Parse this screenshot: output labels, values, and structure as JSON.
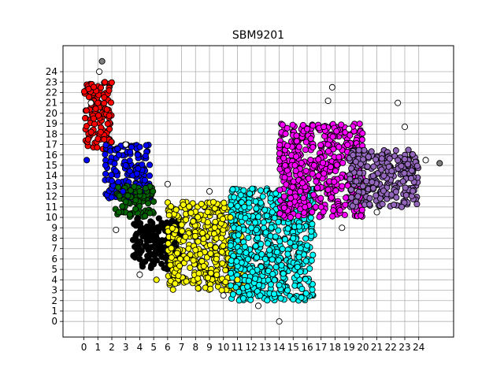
{
  "chart_data": {
    "type": "scatter",
    "title": "SBM9201",
    "xlabel": "",
    "ylabel": "",
    "xlim": [
      -1.5,
      26.5
    ],
    "ylim": [
      -1.5,
      26.5
    ],
    "x_ticks": [
      "0",
      "1",
      "2",
      "3",
      "4",
      "5",
      "6",
      "7",
      "8",
      "9",
      "10",
      "11",
      "12",
      "13",
      "14",
      "15",
      "16",
      "17",
      "18",
      "19",
      "20",
      "21",
      "22",
      "23",
      "24"
    ],
    "y_ticks": [
      "0",
      "1",
      "2",
      "3",
      "4",
      "5",
      "6",
      "7",
      "8",
      "9",
      "10",
      "11",
      "12",
      "13",
      "14",
      "15",
      "16",
      "17",
      "18",
      "19",
      "20",
      "21",
      "22",
      "23",
      "24"
    ],
    "grid": true,
    "legend": "none",
    "marker_edge_color": "#000000",
    "clusters": [
      {
        "color": "#ff0000",
        "region": {
          "x": [
            0.0,
            2.0
          ],
          "y": [
            16.5,
            23.0
          ]
        }
      },
      {
        "color": "#0000ff",
        "region": {
          "x": [
            1.5,
            4.8
          ],
          "y": [
            11.8,
            17.0
          ]
        }
      },
      {
        "color": "#006400",
        "region": {
          "x": [
            2.2,
            5.0
          ],
          "y": [
            10.0,
            13.0
          ]
        }
      },
      {
        "color": "#000000",
        "region": {
          "x": [
            3.5,
            7.0
          ],
          "y": [
            5.0,
            10.0
          ]
        }
      },
      {
        "color": "#ffff00",
        "region": {
          "x": [
            6.0,
            11.5
          ],
          "y": [
            3.0,
            11.5
          ]
        }
      },
      {
        "color": "#00ffff",
        "region": {
          "x": [
            10.5,
            16.5
          ],
          "y": [
            2.0,
            12.8
          ]
        }
      },
      {
        "color": "#ff00ff",
        "region": {
          "x": [
            14.0,
            20.0
          ],
          "y": [
            10.0,
            19.0
          ]
        }
      },
      {
        "color": "#9467bd",
        "region": {
          "x": [
            19.0,
            24.0
          ],
          "y": [
            11.0,
            16.5
          ]
        }
      }
    ],
    "points": [
      {
        "x": 1.5,
        "y": 23.0,
        "color": "#ff0000"
      },
      {
        "x": 1.8,
        "y": 22.2,
        "color": "#ff0000"
      },
      {
        "x": 1.0,
        "y": 21.0,
        "color": "#ff0000"
      },
      {
        "x": 0.7,
        "y": 19.5,
        "color": "#ff0000"
      },
      {
        "x": 1.2,
        "y": 18.2,
        "color": "#ff0000"
      },
      {
        "x": 0.3,
        "y": 17.5,
        "color": "#ff0000"
      },
      {
        "x": 1.7,
        "y": 19.0,
        "color": "#ff0000"
      },
      {
        "x": 2.5,
        "y": 16.0,
        "color": "#0000ff"
      },
      {
        "x": 3.0,
        "y": 15.0,
        "color": "#0000ff"
      },
      {
        "x": 2.0,
        "y": 13.5,
        "color": "#0000ff"
      },
      {
        "x": 3.8,
        "y": 14.2,
        "color": "#0000ff"
      },
      {
        "x": 0.2,
        "y": 15.5,
        "color": "#0000ff"
      },
      {
        "x": 2.8,
        "y": 12.5,
        "color": "#0000ff"
      },
      {
        "x": 3.0,
        "y": 11.5,
        "color": "#006400"
      },
      {
        "x": 4.0,
        "y": 12.5,
        "color": "#006400"
      },
      {
        "x": 2.5,
        "y": 10.5,
        "color": "#006400"
      },
      {
        "x": 3.7,
        "y": 10.8,
        "color": "#006400"
      },
      {
        "x": 4.5,
        "y": 8.0,
        "color": "#000000"
      },
      {
        "x": 5.5,
        "y": 9.0,
        "color": "#000000"
      },
      {
        "x": 4.0,
        "y": 6.0,
        "color": "#000000"
      },
      {
        "x": 5.0,
        "y": 5.5,
        "color": "#000000"
      },
      {
        "x": 6.5,
        "y": 7.5,
        "color": "#000000"
      },
      {
        "x": 7.5,
        "y": 7.0,
        "color": "#ffff00"
      },
      {
        "x": 8.5,
        "y": 8.5,
        "color": "#ffff00"
      },
      {
        "x": 9.5,
        "y": 6.0,
        "color": "#ffff00"
      },
      {
        "x": 10.5,
        "y": 10.0,
        "color": "#ffff00"
      },
      {
        "x": 11.0,
        "y": 4.0,
        "color": "#ffff00"
      },
      {
        "x": 5.2,
        "y": 4.0,
        "color": "#ffff00"
      },
      {
        "x": 12.0,
        "y": 9.0,
        "color": "#00ffff"
      },
      {
        "x": 13.0,
        "y": 6.0,
        "color": "#00ffff"
      },
      {
        "x": 14.0,
        "y": 3.5,
        "color": "#00ffff"
      },
      {
        "x": 15.0,
        "y": 8.0,
        "color": "#00ffff"
      },
      {
        "x": 11.5,
        "y": 11.0,
        "color": "#00ffff"
      },
      {
        "x": 13.5,
        "y": 10.5,
        "color": "#00ffff"
      },
      {
        "x": 15.5,
        "y": 12.5,
        "color": "#ff00ff"
      },
      {
        "x": 16.5,
        "y": 15.0,
        "color": "#ff00ff"
      },
      {
        "x": 17.5,
        "y": 17.0,
        "color": "#ff00ff"
      },
      {
        "x": 18.5,
        "y": 13.0,
        "color": "#ff00ff"
      },
      {
        "x": 16.0,
        "y": 18.5,
        "color": "#ff00ff"
      },
      {
        "x": 17.0,
        "y": 11.0,
        "color": "#ff00ff"
      },
      {
        "x": 20.0,
        "y": 13.0,
        "color": "#9467bd"
      },
      {
        "x": 21.5,
        "y": 14.0,
        "color": "#9467bd"
      },
      {
        "x": 22.5,
        "y": 15.5,
        "color": "#9467bd"
      },
      {
        "x": 23.5,
        "y": 14.5,
        "color": "#9467bd"
      },
      {
        "x": 19.5,
        "y": 11.5,
        "color": "#9467bd"
      },
      {
        "x": 1.3,
        "y": 25.0,
        "color": "#808080"
      },
      {
        "x": 25.5,
        "y": 15.2,
        "color": "#808080"
      },
      {
        "x": 1.1,
        "y": 24.0,
        "color": "#ffffff"
      },
      {
        "x": 17.8,
        "y": 22.5,
        "color": "#ffffff"
      },
      {
        "x": 22.5,
        "y": 21.0,
        "color": "#ffffff"
      },
      {
        "x": 14.0,
        "y": 0.0,
        "color": "#ffffff"
      },
      {
        "x": 6.0,
        "y": 13.2,
        "color": "#ffffff"
      },
      {
        "x": 0.5,
        "y": 21.0,
        "color": "#ffffff"
      },
      {
        "x": 23.0,
        "y": 18.7,
        "color": "#ffffff"
      },
      {
        "x": 17.5,
        "y": 21.2,
        "color": "#ffffff"
      },
      {
        "x": 19.0,
        "y": 18.5,
        "color": "#ffffff"
      },
      {
        "x": 10.0,
        "y": 2.5,
        "color": "#ffffff"
      },
      {
        "x": 12.5,
        "y": 1.5,
        "color": "#ffffff"
      },
      {
        "x": 4.0,
        "y": 4.5,
        "color": "#ffffff"
      },
      {
        "x": 9.0,
        "y": 12.5,
        "color": "#ffffff"
      },
      {
        "x": 2.3,
        "y": 8.8,
        "color": "#ffffff"
      },
      {
        "x": 3.0,
        "y": 17.0,
        "color": "#ffffff"
      },
      {
        "x": 24.5,
        "y": 15.5,
        "color": "#ffffff"
      },
      {
        "x": 18.5,
        "y": 9.0,
        "color": "#ffffff"
      },
      {
        "x": 21.0,
        "y": 10.5,
        "color": "#ffffff"
      }
    ]
  }
}
